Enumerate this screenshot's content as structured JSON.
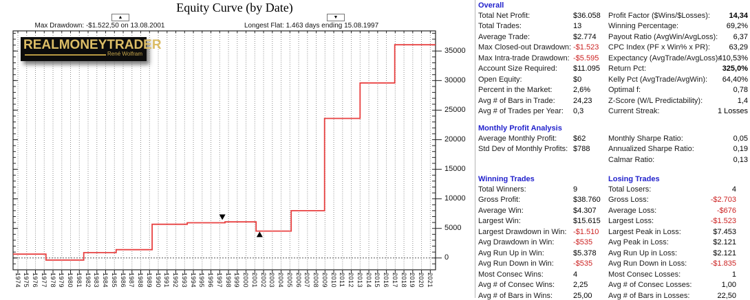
{
  "title": "Equity Curve (by Date)",
  "annotations": {
    "max_drawdown": {
      "icon": "▲",
      "text": "Max Drawdown: -$1.522,50 on 13.08.2001"
    },
    "longest_flat": {
      "icon": "▼",
      "text": "Longest Flat: 1.463 days ending 15.08.1997"
    }
  },
  "logo": {
    "brand": "REALMONEYTRADER",
    "subtitle": "René Wolfram"
  },
  "chart_data": {
    "type": "line",
    "title": "Equity Curve (by Date)",
    "step": true,
    "line_color": "#e84040",
    "xlim": [
      1973.45,
      2021.6
    ],
    "ylim": [
      -2000,
      38400
    ],
    "x_ticks": [
      1974,
      1975,
      1976,
      1977,
      1978,
      1979,
      1980,
      1981,
      1982,
      1983,
      1984,
      1985,
      1986,
      1987,
      1988,
      1989,
      1990,
      1991,
      1992,
      1993,
      1994,
      1995,
      1996,
      1997,
      1998,
      1999,
      2000,
      2001,
      2002,
      2003,
      2004,
      2005,
      2006,
      2007,
      2008,
      2009,
      2010,
      2011,
      2012,
      2013,
      2014,
      2015,
      2016,
      2017,
      2018,
      2019,
      2020,
      2021
    ],
    "y_ticks": [
      0,
      5000,
      10000,
      15000,
      20000,
      25000,
      30000,
      35000
    ],
    "y_minor_step": 1000,
    "zero_line": true,
    "grid": "vertical-dotted",
    "series": [
      {
        "name": "Equity",
        "points": [
          [
            1973.45,
            650
          ],
          [
            1977.2,
            650
          ],
          [
            1977.2,
            -350
          ],
          [
            1981.5,
            -350
          ],
          [
            1981.5,
            900
          ],
          [
            1985.2,
            900
          ],
          [
            1985.2,
            1400
          ],
          [
            1989.3,
            1400
          ],
          [
            1989.3,
            5700
          ],
          [
            1993.3,
            5700
          ],
          [
            1993.3,
            5950
          ],
          [
            1997.6,
            5950
          ],
          [
            1997.6,
            6100
          ],
          [
            2001.15,
            6100
          ],
          [
            2001.15,
            4550
          ],
          [
            2005.15,
            4550
          ],
          [
            2005.15,
            8000
          ],
          [
            2008.95,
            8000
          ],
          [
            2008.95,
            23600
          ],
          [
            2013.0,
            23600
          ],
          [
            2013.0,
            29600
          ],
          [
            2016.95,
            29600
          ],
          [
            2016.95,
            36058
          ],
          [
            2021.6,
            36058
          ]
        ]
      }
    ],
    "point_markers": [
      {
        "shape": "triangle-down",
        "x": 1997.3,
        "y": 6900,
        "meaning": "longest-flat-marker"
      },
      {
        "shape": "triangle-up",
        "x": 2001.55,
        "y": 4000,
        "meaning": "max-drawdown-marker"
      }
    ]
  },
  "stats": {
    "header_color": "#2222cc",
    "negative_color": "#cc2222",
    "sections": [
      {
        "id": "overall",
        "left_title": "Overall",
        "right_title": null,
        "left": [
          {
            "label": "Total Net Profit:",
            "value": "$36.058"
          },
          {
            "label": "Total Trades:",
            "value": "13"
          },
          {
            "label": "Average Trade:",
            "value": "$2.774"
          },
          {
            "label": "Max Closed-out Drawdown:",
            "value": "-$1.523",
            "neg": true
          },
          {
            "label": "Max Intra-trade Drawdown:",
            "value": "-$5.595",
            "neg": true
          },
          {
            "label": "Account Size Required:",
            "value": "$11.095"
          },
          {
            "label": "Open Equity:",
            "value": "$0"
          },
          {
            "label": "Percent in the Market:",
            "value": "2,6%"
          },
          {
            "label": "Avg # of Bars in Trade:",
            "value": "24,23"
          },
          {
            "label": "Avg # of Trades per Year:",
            "value": "0,3"
          }
        ],
        "right": [
          {
            "label": "Profit Factor ($Wins/$Losses):",
            "value": "14,34",
            "bold": true
          },
          {
            "label": "Winning Percentage:",
            "value": "69,2%"
          },
          {
            "label": "Payout Ratio (AvgWin/AvgLoss):",
            "value": "6,37"
          },
          {
            "label": "CPC Index (PF x Win% x PR):",
            "value": "63,29"
          },
          {
            "label": "Expectancy (AvgTrade/AvgLoss):",
            "value": "410,53%"
          },
          {
            "label": "Return Pct:",
            "value": "325,0%",
            "bold": true
          },
          {
            "label": "Kelly Pct (AvgTrade/AvgWin):",
            "value": "64,40%"
          },
          {
            "label": "Optimal f:",
            "value": "0,78"
          },
          {
            "label": "Z-Score (W/L Predictability):",
            "value": "1,4"
          },
          {
            "label": "Current Streak:",
            "value": "1 Losses"
          }
        ]
      },
      {
        "id": "monthly",
        "left_title": "Monthly Profit Analysis",
        "right_title": null,
        "left": [
          {
            "label": "Average Monthly Profit:",
            "value": "$62"
          },
          {
            "label": "Std Dev of Monthly Profits:",
            "value": "$788"
          }
        ],
        "right": [
          {
            "label": "Monthly Sharpe Ratio:",
            "value": "0,05"
          },
          {
            "label": "Annualized Sharpe Ratio:",
            "value": "0,19"
          },
          {
            "label": "Calmar Ratio:",
            "value": "0,13"
          }
        ]
      },
      {
        "id": "trades",
        "left_title": "Winning Trades",
        "right_title": "Losing Trades",
        "left": [
          {
            "label": "Total Winners:",
            "value": "9"
          },
          {
            "label": "Gross Profit:",
            "value": "$38.760"
          },
          {
            "label": "Average Win:",
            "value": "$4.307"
          },
          {
            "label": "Largest Win:",
            "value": "$15.615"
          },
          {
            "label": "Largest Drawdown in Win:",
            "value": "-$1.510",
            "neg": true
          },
          {
            "label": "Avg Drawdown in Win:",
            "value": "-$535",
            "neg": true
          },
          {
            "label": "Avg Run Up in Win:",
            "value": "$5.378"
          },
          {
            "label": "Avg Run Down in Win:",
            "value": "-$535",
            "neg": true
          },
          {
            "label": "Most Consec Wins:",
            "value": "4"
          },
          {
            "label": "Avg # of Consec Wins:",
            "value": "2,25"
          },
          {
            "label": "Avg # of Bars in Wins:",
            "value": "25,00"
          }
        ],
        "right": [
          {
            "label": "Total Losers:",
            "value": "4"
          },
          {
            "label": "Gross Loss:",
            "value": "-$2.703",
            "neg": true
          },
          {
            "label": "Average Loss:",
            "value": "-$676",
            "neg": true
          },
          {
            "label": "Largest Loss:",
            "value": "-$1.523",
            "neg": true
          },
          {
            "label": "Largest Peak in Loss:",
            "value": "$7.453"
          },
          {
            "label": "Avg Peak in Loss:",
            "value": "$2.121"
          },
          {
            "label": "Avg Run Up in Loss:",
            "value": "$2.121"
          },
          {
            "label": "Avg Run Down in Loss:",
            "value": "-$1.835",
            "neg": true
          },
          {
            "label": "Most Consec Losses:",
            "value": "1"
          },
          {
            "label": "Avg # of Consec Losses:",
            "value": "1,00"
          },
          {
            "label": "Avg # of Bars in Losses:",
            "value": "22,50"
          }
        ]
      }
    ]
  }
}
